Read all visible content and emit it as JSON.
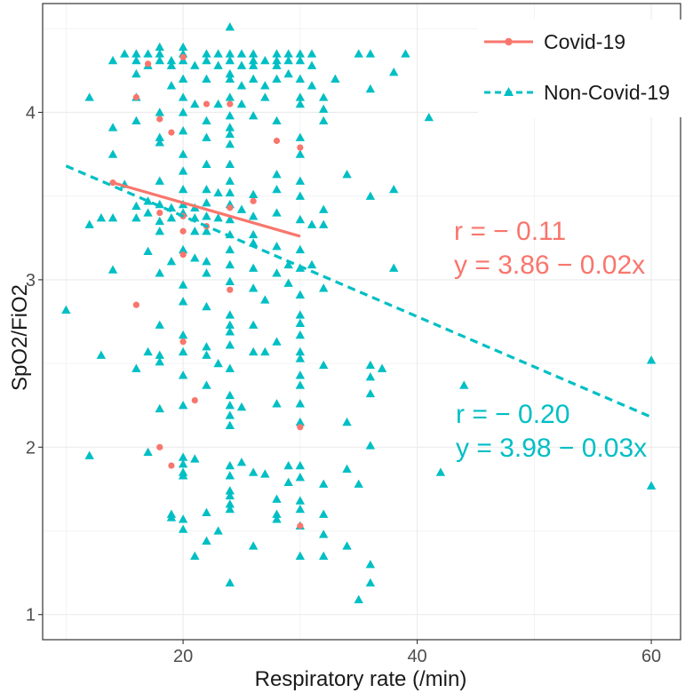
{
  "chart_data": {
    "type": "scatter",
    "xlabel": "Respiratory rate (/min)",
    "ylabel": "SpO2/FiO2",
    "xlim": [
      8.0,
      62.5
    ],
    "ylim": [
      0.85,
      4.65
    ],
    "xticks": [
      20,
      40,
      60
    ],
    "yticks": [
      1,
      2,
      3,
      4
    ],
    "x_tick_labels": [
      "20",
      "40",
      "60"
    ],
    "y_tick_labels": [
      "1",
      "2",
      "3",
      "4"
    ],
    "grid": true,
    "legend_position": "top-right",
    "series": [
      {
        "name": "Covid-19",
        "color": "#F8766D",
        "marker": "circle",
        "fit_line": {
          "style": "solid",
          "x_start": 14,
          "x_end": 30,
          "intercept": 3.86,
          "slope": -0.02
        },
        "annotation": {
          "r_text": "r = − 0.11",
          "eq_text": "y = 3.86 − 0.02x"
        },
        "points": [
          [
            17,
            4.29
          ],
          [
            20,
            4.33
          ],
          [
            16,
            4.09
          ],
          [
            18,
            3.96
          ],
          [
            19,
            3.88
          ],
          [
            22,
            4.05
          ],
          [
            24,
            4.05
          ],
          [
            28,
            3.83
          ],
          [
            30,
            3.79
          ],
          [
            14,
            3.58
          ],
          [
            18,
            3.4
          ],
          [
            20,
            3.38
          ],
          [
            20,
            3.29
          ],
          [
            22,
            3.32
          ],
          [
            24,
            3.43
          ],
          [
            26,
            3.47
          ],
          [
            20,
            3.15
          ],
          [
            24,
            2.94
          ],
          [
            16,
            2.85
          ],
          [
            20,
            2.63
          ],
          [
            21,
            2.28
          ],
          [
            30,
            2.12
          ],
          [
            18,
            2.0
          ],
          [
            19,
            1.89
          ],
          [
            30,
            1.53
          ]
        ]
      },
      {
        "name": "Non-Covid-19",
        "color": "#00BFC4",
        "marker": "triangle",
        "fit_line": {
          "style": "dashed",
          "x_start": 10,
          "x_end": 60,
          "intercept": 3.98,
          "slope": -0.03
        },
        "annotation": {
          "r_text": "r = − 0.20",
          "eq_text": "y = 3.98 − 0.03x"
        },
        "points": [
          [
            15,
            4.35
          ],
          [
            16,
            4.35
          ],
          [
            17,
            4.35
          ],
          [
            18,
            4.35
          ],
          [
            20,
            4.35
          ],
          [
            22,
            4.35
          ],
          [
            23,
            4.35
          ],
          [
            24,
            4.35
          ],
          [
            25,
            4.35
          ],
          [
            26,
            4.35
          ],
          [
            28,
            4.35
          ],
          [
            29,
            4.35
          ],
          [
            30,
            4.35
          ],
          [
            31,
            4.35
          ],
          [
            35,
            4.35
          ],
          [
            36,
            4.35
          ],
          [
            39,
            4.35
          ],
          [
            14,
            4.31
          ],
          [
            16,
            4.31
          ],
          [
            18,
            4.31
          ],
          [
            19,
            4.31
          ],
          [
            20,
            4.31
          ],
          [
            22,
            4.31
          ],
          [
            24,
            4.31
          ],
          [
            26,
            4.31
          ],
          [
            27,
            4.31
          ],
          [
            28,
            4.31
          ],
          [
            29,
            4.31
          ],
          [
            30,
            4.31
          ],
          [
            24,
            4.51
          ],
          [
            18,
            4.39
          ],
          [
            20,
            4.39
          ],
          [
            17,
            4.28
          ],
          [
            19,
            4.28
          ],
          [
            21,
            4.28
          ],
          [
            23,
            4.28
          ],
          [
            25,
            4.28
          ],
          [
            26,
            4.28
          ],
          [
            28,
            4.28
          ],
          [
            31,
            4.28
          ],
          [
            38,
            4.24
          ],
          [
            16,
            4.23
          ],
          [
            24,
            4.23
          ],
          [
            29,
            4.23
          ],
          [
            20,
            4.2
          ],
          [
            22,
            4.2
          ],
          [
            24,
            4.2
          ],
          [
            26,
            4.2
          ],
          [
            28,
            4.2
          ],
          [
            30,
            4.2
          ],
          [
            33,
            4.2
          ],
          [
            19,
            4.16
          ],
          [
            25,
            4.16
          ],
          [
            27,
            4.16
          ],
          [
            31,
            4.16
          ],
          [
            36,
            4.14
          ],
          [
            12,
            4.09
          ],
          [
            16,
            4.09
          ],
          [
            20,
            4.09
          ],
          [
            24,
            4.09
          ],
          [
            27,
            4.09
          ],
          [
            30,
            4.09
          ],
          [
            32,
            4.09
          ],
          [
            21,
            4.05
          ],
          [
            23,
            4.05
          ],
          [
            25,
            4.05
          ],
          [
            30,
            4.05
          ],
          [
            32,
            4.02
          ],
          [
            18,
            4.0
          ],
          [
            20,
            4.0
          ],
          [
            24,
            3.98
          ],
          [
            26,
            3.98
          ],
          [
            16,
            3.95
          ],
          [
            22,
            3.95
          ],
          [
            28,
            3.95
          ],
          [
            32,
            3.95
          ],
          [
            41,
            3.97
          ],
          [
            14,
            3.91
          ],
          [
            24,
            3.91
          ],
          [
            20,
            3.89
          ],
          [
            24,
            3.87
          ],
          [
            18,
            3.85
          ],
          [
            22,
            3.85
          ],
          [
            30,
            3.85
          ],
          [
            18,
            3.82
          ],
          [
            24,
            3.81
          ],
          [
            20,
            3.75
          ],
          [
            30,
            3.75
          ],
          [
            14,
            3.75
          ],
          [
            22,
            3.69
          ],
          [
            24,
            3.69
          ],
          [
            20,
            3.65
          ],
          [
            28,
            3.63
          ],
          [
            34,
            3.63
          ],
          [
            18,
            3.59
          ],
          [
            24,
            3.59
          ],
          [
            30,
            3.59
          ],
          [
            15,
            3.57
          ],
          [
            20,
            3.54
          ],
          [
            22,
            3.54
          ],
          [
            28,
            3.54
          ],
          [
            38,
            3.54
          ],
          [
            23,
            3.52
          ],
          [
            24,
            3.52
          ],
          [
            26,
            3.51
          ],
          [
            30,
            3.5
          ],
          [
            36,
            3.5
          ],
          [
            22,
            3.46
          ],
          [
            18,
            3.45
          ],
          [
            20,
            3.45
          ],
          [
            24,
            3.45
          ],
          [
            16,
            3.44
          ],
          [
            17,
            3.47
          ],
          [
            19,
            3.43
          ],
          [
            21,
            3.43
          ],
          [
            25,
            3.42
          ],
          [
            32,
            3.42
          ],
          [
            12,
            3.33
          ],
          [
            14,
            3.37
          ],
          [
            16,
            3.37
          ],
          [
            17,
            3.4
          ],
          [
            18,
            3.35
          ],
          [
            19,
            3.37
          ],
          [
            20,
            3.4
          ],
          [
            21,
            3.37
          ],
          [
            22,
            3.38
          ],
          [
            23,
            3.37
          ],
          [
            24,
            3.36
          ],
          [
            26,
            3.38
          ],
          [
            28,
            3.4
          ],
          [
            30,
            3.36
          ],
          [
            13,
            3.37
          ],
          [
            18,
            3.29
          ],
          [
            21,
            3.29
          ],
          [
            22,
            3.29
          ],
          [
            24,
            3.27
          ],
          [
            26,
            3.27
          ],
          [
            31,
            3.33
          ],
          [
            32,
            3.33
          ],
          [
            20,
            3.18
          ],
          [
            24,
            3.18
          ],
          [
            26,
            3.22
          ],
          [
            28,
            3.2
          ],
          [
            30,
            3.18
          ],
          [
            17,
            3.17
          ],
          [
            19,
            3.11
          ],
          [
            21,
            3.13
          ],
          [
            22,
            3.11
          ],
          [
            24,
            3.09
          ],
          [
            26,
            3.07
          ],
          [
            29,
            3.09
          ],
          [
            30,
            3.07
          ],
          [
            31,
            3.09
          ],
          [
            14,
            3.06
          ],
          [
            18,
            3.04
          ],
          [
            22,
            3.04
          ],
          [
            28,
            3.04
          ],
          [
            38,
            3.07
          ],
          [
            20,
            2.97
          ],
          [
            24,
            2.99
          ],
          [
            26,
            2.95
          ],
          [
            29,
            2.98
          ],
          [
            32,
            2.95
          ],
          [
            30,
            2.91
          ],
          [
            22,
            2.84
          ],
          [
            27,
            2.88
          ],
          [
            20,
            2.87
          ],
          [
            24,
            2.79
          ],
          [
            30,
            2.79
          ],
          [
            10,
            2.82
          ],
          [
            30,
            2.74
          ],
          [
            18,
            2.73
          ],
          [
            24,
            2.73
          ],
          [
            26,
            2.73
          ],
          [
            24,
            2.69
          ],
          [
            20,
            2.67
          ],
          [
            30,
            2.67
          ],
          [
            28,
            2.63
          ],
          [
            22,
            2.6
          ],
          [
            24,
            2.61
          ],
          [
            13,
            2.55
          ],
          [
            17,
            2.57
          ],
          [
            18,
            2.55
          ],
          [
            20,
            2.57
          ],
          [
            22,
            2.55
          ],
          [
            26,
            2.57
          ],
          [
            27,
            2.57
          ],
          [
            30,
            2.57
          ],
          [
            60,
            2.52
          ],
          [
            16,
            2.47
          ],
          [
            18,
            2.51
          ],
          [
            23,
            2.5
          ],
          [
            24,
            2.47
          ],
          [
            30,
            2.53
          ],
          [
            32,
            2.49
          ],
          [
            36,
            2.49
          ],
          [
            37,
            2.47
          ],
          [
            20,
            2.43
          ],
          [
            30,
            2.43
          ],
          [
            36,
            2.42
          ],
          [
            22,
            2.37
          ],
          [
            30,
            2.37
          ],
          [
            44,
            2.37
          ],
          [
            24,
            2.31
          ],
          [
            36,
            2.32
          ],
          [
            20,
            2.25
          ],
          [
            24,
            2.25
          ],
          [
            30,
            2.26
          ],
          [
            18,
            2.23
          ],
          [
            24,
            2.19
          ],
          [
            25,
            2.24
          ],
          [
            28,
            2.26
          ],
          [
            30,
            2.15
          ],
          [
            34,
            2.15
          ],
          [
            24,
            2.13
          ],
          [
            36,
            2.01
          ],
          [
            17,
            1.97
          ],
          [
            12,
            1.95
          ],
          [
            20,
            1.94
          ],
          [
            21,
            1.93
          ],
          [
            20,
            1.9
          ],
          [
            25,
            1.91
          ],
          [
            29,
            1.89
          ],
          [
            24,
            1.89
          ],
          [
            30,
            1.89
          ],
          [
            34,
            1.87
          ],
          [
            20,
            1.85
          ],
          [
            26,
            1.85
          ],
          [
            42,
            1.85
          ],
          [
            20,
            1.83
          ],
          [
            24,
            1.83
          ],
          [
            27,
            1.84
          ],
          [
            30,
            1.82
          ],
          [
            29,
            1.79
          ],
          [
            32,
            1.78
          ],
          [
            35,
            1.78
          ],
          [
            60,
            1.77
          ],
          [
            24,
            1.74
          ],
          [
            24,
            1.71
          ],
          [
            28,
            1.69
          ],
          [
            30,
            1.68
          ],
          [
            24,
            1.66
          ],
          [
            24,
            1.63
          ],
          [
            30,
            1.63
          ],
          [
            22,
            1.61
          ],
          [
            19,
            1.6
          ],
          [
            28,
            1.6
          ],
          [
            32,
            1.6
          ],
          [
            19,
            1.58
          ],
          [
            20,
            1.57
          ],
          [
            28,
            1.57
          ],
          [
            20,
            1.51
          ],
          [
            23,
            1.5
          ],
          [
            30,
            1.53
          ],
          [
            32,
            1.48
          ],
          [
            22,
            1.44
          ],
          [
            26,
            1.41
          ],
          [
            34,
            1.41
          ],
          [
            21,
            1.35
          ],
          [
            30,
            1.35
          ],
          [
            32,
            1.35
          ],
          [
            36,
            1.3
          ],
          [
            24,
            1.19
          ],
          [
            36,
            1.19
          ],
          [
            35,
            1.09
          ]
        ]
      }
    ]
  }
}
